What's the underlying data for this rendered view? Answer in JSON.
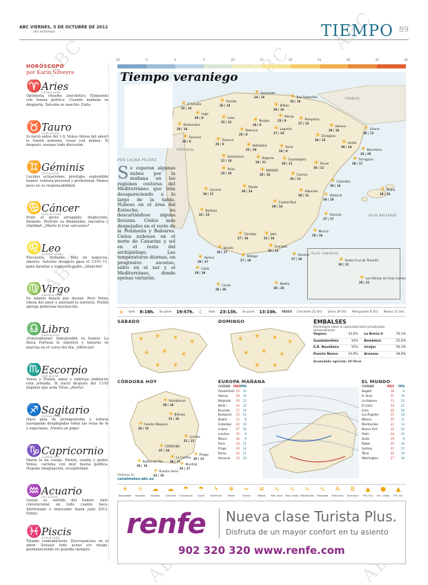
{
  "masthead": {
    "date": "ABC VIERNES, 5 DE OCTUBRE DE 2012",
    "url": "abc.es/tiempo",
    "section": "TIEMPO",
    "page": "89"
  },
  "watermark": "ABC",
  "horoscope": {
    "heading": "HORÓSCOPO",
    "author": "por Karin Silveyra",
    "signs": [
      {
        "glyph": "♈",
        "name": "Aries",
        "dates": "(21-III al 20-IV)",
        "text": "Optimista, risueño, anecdótico, Eloquente con buena política. Cuando mañana se despierte, Saturno se marchó. Éxito."
      },
      {
        "glyph": "♉",
        "name": "Tauro",
        "dates": "(21-IV al 20-V)",
        "text": "Si nació antes del 1-V, Venus (diosa del amor) le traerá armonía, rosas con mimos. Si después, sosiaye todo discusión."
      },
      {
        "glyph": "♊",
        "name": "Géminis",
        "dates": "(21-V al 21-VI)",
        "text": "Lucidas actuaciones, prestigio, esplendido humor, ventura personal y profesional. Menos peso en su responsabilidad."
      },
      {
        "glyph": "♋",
        "name": "Cáncer",
        "dates": "(22-VI al 22-VII)",
        "text": "Evite el gesto arrogante, displicente, distante. Disfrute su dinamismo, iniciativa y vitalidad. ¿Marte le trae sarcasmo?"
      },
      {
        "glyph": "♌",
        "name": "Leo",
        "dates": "(23-VII al 23-VIII)",
        "text": "Elocuente, brillante, feliz en negocios, amores. Saturno despacio pasa el 13-VI 11, gana batallas y explosivo genio. ¡Atención!"
      },
      {
        "glyph": "♍",
        "name": "Virgo",
        "dates": "(24-VIII al 23-IX)",
        "text": "Su talante dejará que desear. Pero Venus (diosa del amor y amistad) le sonreirá. Plutón agrega poderosa fascinación."
      },
      {
        "glyph": "♎",
        "name": "Libra",
        "dates": "(24-IX al 23-X)",
        "text": "¡Enhorabuena! Inmejorable su humor. La diosa Fortuna le sonreirá y Saturno se marcha en el curso del día. ¡Albricias!"
      },
      {
        "glyph": "♏",
        "name": "Escorpio",
        "dates": "(24-X al 22-XI)",
        "text": "Venus y Plutón, amor y embrujo emblecen esta jornada. Si nació después del 13-XI impulso que arda Tíroa. ¡Alerta!"
      },
      {
        "glyph": "♐",
        "name": "Sagitario",
        "dates": "(23-XI al 21-XII)",
        "text": "Hace gala de protagonismo y euforia navegando desplegadas todas las velas de fe y esperanza. ¡Viento en popa!"
      },
      {
        "glyph": "♑",
        "name": "Capricornio",
        "dates": "(22-XII al 20-I)",
        "text": "Marte le da coraje. Plutón, osadía y poder. Venus, carisma con muy buena política. Nepuno imaginación, receptividad."
      },
      {
        "glyph": "♒",
        "name": "Acuario",
        "dates": "(21-I al 19-II)",
        "text": "Genial su sentido del humor. Anti-convencional en todo cuanto hace. Afortunado e innovador hasta julio 2013. Éxitos."
      },
      {
        "glyph": "♓",
        "name": "Piscis",
        "dates": "(20-II al 20-III)",
        "text": "Talante contradictorio. Discrepancias en el amor. Sosiaye todo acoso y/o riesgo, permaneciendo en guardia siempre."
      }
    ]
  },
  "temp_scale": {
    "ticks": [
      "-10",
      "-5",
      "0",
      "5",
      "10",
      "15",
      "20",
      "25",
      "30",
      "35",
      "40"
    ],
    "colors": [
      "#7fa6c9",
      "#9dbbd6",
      "#bcd3e3",
      "#d9e6d5",
      "#f1ecc0",
      "#f6e296",
      "#f4cc6a",
      "#f0ad4e",
      "#e98a3a",
      "#e0602f"
    ]
  },
  "main_map": {
    "title": "Tiempo veraniego",
    "byline": "POR LAURA PELÁEZ",
    "article_dropcap": "S",
    "article": "e esperan algunas nubes por la mañana en las regiones costeras del Mediterráneo que irán desapareciendo a lo largo de la tarde. Nuboso en el área del Estrecho, no descartándose alguna llovizna. Cielos más despejados en el resto de la Península y Baleares. Cielos nubosos en el norte de Canarias y sol en el resto del archipiélago. Las temperaturas diurnas, en progresivo ascenso, salvo en el sur y el Mediterráneo, donde apenas variarán.",
    "labels": {
      "francia": "FRANCIA",
      "portugal": "PORTUGAL",
      "baleares": "ISLAS BALEARES",
      "canarias": "ISLAS CANARIAS"
    },
    "cities": [
      {
        "name": "A Coruña",
        "temps": "23 | 14"
      },
      {
        "name": "Oviedo",
        "temps": "26 | 14"
      },
      {
        "name": "Santander",
        "temps": "24 | 16"
      },
      {
        "name": "Bilbao",
        "temps": "28 | 16"
      },
      {
        "name": "San Sebastián",
        "temps": "24 | 16"
      },
      {
        "name": "Lugo",
        "temps": "28 | 9"
      },
      {
        "name": "Pontevedra",
        "temps": "28 | 14"
      },
      {
        "name": "León",
        "temps": "23 | 12"
      },
      {
        "name": "Burgos",
        "temps": "24 | 8"
      },
      {
        "name": "Vitoria",
        "temps": "23 | 9"
      },
      {
        "name": "Pamplona",
        "temps": "27 | 13"
      },
      {
        "name": "Huesca",
        "temps": "28 | 16"
      },
      {
        "name": "Girona",
        "temps": "28 | 13"
      },
      {
        "name": "Ourense",
        "temps": "29 | 8"
      },
      {
        "name": "Palencia",
        "temps": "25 | 8"
      },
      {
        "name": "Logroño",
        "temps": "27 | 14"
      },
      {
        "name": "Zaragoza",
        "temps": "30 | 15"
      },
      {
        "name": "Lleida",
        "temps": "30 | 14"
      },
      {
        "name": "Barcelona",
        "temps": "26 | 20"
      },
      {
        "name": "Zamora",
        "temps": "25 | 9"
      },
      {
        "name": "Valladolid",
        "temps": "25 | 10"
      },
      {
        "name": "Soria",
        "temps": "24 | 9"
      },
      {
        "name": "Tarragona",
        "temps": "28 | 17"
      },
      {
        "name": "Salamanca",
        "temps": "27 | 10"
      },
      {
        "name": "Segovia",
        "temps": "24 | 11"
      },
      {
        "name": "Guadalajara",
        "temps": "28 | 11"
      },
      {
        "name": "Teruel",
        "temps": "26 | 11"
      },
      {
        "name": "Ávila",
        "temps": "23 | 10"
      },
      {
        "name": "MADRID",
        "temps": "28 | 16"
      },
      {
        "name": "Cuenca",
        "temps": "26 | 11"
      },
      {
        "name": "Castellón",
        "temps": "28 | 16"
      },
      {
        "name": "Palma",
        "temps": "28 | 16"
      },
      {
        "name": "Cáceres",
        "temps": "30 | 17"
      },
      {
        "name": "Toledo",
        "temps": "30 | 14"
      },
      {
        "name": "Valencia",
        "temps": "30 | 18"
      },
      {
        "name": "Albacete",
        "temps": "30 | 11"
      },
      {
        "name": "Badajoz",
        "temps": "32 | 15"
      },
      {
        "name": "Ciudad Real",
        "temps": "30 | 14"
      },
      {
        "name": "Alicante",
        "temps": "27 | 17"
      },
      {
        "name": "Córdoba",
        "temps": "37 | 16"
      },
      {
        "name": "Jaén",
        "temps": "31 | 16"
      },
      {
        "name": "Murcia",
        "temps": "30 | 16"
      },
      {
        "name": "Sevilla",
        "temps": "34 | 17"
      },
      {
        "name": "Granada",
        "temps": "30 | 12"
      },
      {
        "name": "Huelva",
        "temps": "29 | 17"
      },
      {
        "name": "Almería",
        "temps": "27 | 18"
      },
      {
        "name": "Málaga",
        "temps": "27 | 18"
      },
      {
        "name": "Cádiz",
        "temps": "29 | 19"
      },
      {
        "name": "Ceuta",
        "temps": "28 | 18"
      },
      {
        "name": "Melilla",
        "temps": "28 | 19"
      },
      {
        "name": "Santa Cruz de Tenerife",
        "temps": "28 | 21"
      },
      {
        "name": "Las Palmas de Gran Canaria",
        "temps": "28 | 21"
      }
    ]
  },
  "sun_moon": {
    "sun_rise_label": "Sale",
    "sun_rise": "8:18h.",
    "sun_set_label": "Se pone",
    "sun_set": "19:57h.",
    "moon_rise_label": "Sale",
    "moon_rise": "23:13h.",
    "moon_set_label": "Se pone",
    "moon_set": "13:10h.",
    "phases_label": "FASES",
    "phases": [
      "Creciente 22 Oct.",
      "Llena 29 Oct.",
      "Menguante 8 Oct.",
      "Nueva 15 Oct."
    ]
  },
  "sabado": {
    "title": "SÁBADO"
  },
  "domingo": {
    "title": "DOMINGO"
  },
  "embalses": {
    "title": "EMBALSES",
    "subtitle": "Porcentajes sobre la capacidad total actualizados semanalmente",
    "rows": [
      {
        "name": "Vegana",
        "val": "43,6%",
        "name2": "La Breña II",
        "val2": "76,1%"
      },
      {
        "name": "Guadalmellato",
        "val": "34%",
        "name2": "Bembézar",
        "val2": "52,6%"
      },
      {
        "name": "S.R. Navallana",
        "val": "35%",
        "name2": "Iznájar",
        "val2": "56,3%"
      },
      {
        "name": "Puente Nuevo",
        "val": "54,9%",
        "name2": "Arenoso",
        "val2": "38,9%"
      }
    ],
    "total": "Acumulado agrícola: 10 litros"
  },
  "cordoba": {
    "title": "CÓRDOBA HOY",
    "places": [
      {
        "name": "Pozoblanco",
        "temps": "36 | 16"
      },
      {
        "name": "Bélmez",
        "temps": "31 | 16"
      },
      {
        "name": "Fuente Obejuna",
        "temps": "28 | 15"
      },
      {
        "name": "CÓRDOBA",
        "temps": "37 | 16"
      },
      {
        "name": "La Carlota",
        "temps": "36 | 17"
      },
      {
        "name": "Palma del Río",
        "temps": "36 | 16"
      },
      {
        "name": "Puente Genil",
        "temps": "32 | 16"
      },
      {
        "name": "Montilla",
        "temps": "33 | 17"
      },
      {
        "name": "Priego",
        "temps": "30 | 13"
      },
      {
        "name": "Lucena",
        "temps": "31 | 15"
      }
    ],
    "footer": "Visítenos en:",
    "site": "canalmeteo.abc.es"
  },
  "europa": {
    "title": "EUROPA MAÑANA",
    "col_city": "CIUDAD",
    "col_max": "MÁX",
    "col_min": "MÍN",
    "rows": [
      [
        "Ámsterdam",
        "16",
        "10"
      ],
      [
        "Atenas",
        "29",
        "19"
      ],
      [
        "Belgrado",
        "26",
        "12"
      ],
      [
        "Berlín",
        "14",
        "12"
      ],
      [
        "Bruselas",
        "17",
        "10"
      ],
      [
        "Budapest",
        "23",
        "12"
      ],
      [
        "Dublín",
        "13",
        "8"
      ],
      [
        "Estambul",
        "24",
        "16"
      ],
      [
        "Lisboa",
        "27",
        "16"
      ],
      [
        "Londres",
        "15",
        "8"
      ],
      [
        "Moscú",
        "16",
        "9"
      ],
      [
        "París",
        "19",
        "11"
      ],
      [
        "Praga",
        "18",
        "12"
      ],
      [
        "Roma",
        "24",
        "17"
      ],
      [
        "Varsovia",
        "16",
        "10"
      ]
    ]
  },
  "mundo": {
    "title": "EL MUNDO",
    "col_city": "CIUDAD",
    "col_max": "MÁX",
    "col_min": "MÍN",
    "rows": [
      [
        "Bogotá",
        "18",
        "8"
      ],
      [
        "B. Aires",
        "21",
        "16"
      ],
      [
        "La Habana",
        "31",
        "23"
      ],
      [
        "El Cairo",
        "33",
        "21"
      ],
      [
        "Lima",
        "20",
        "16"
      ],
      [
        "Los Ángeles",
        "21",
        "18"
      ],
      [
        "México",
        "20",
        "11"
      ],
      [
        "Montevideo",
        "22",
        "13"
      ],
      [
        "Nueva York",
        "26",
        "20"
      ],
      [
        "Pekín",
        "24",
        "12"
      ],
      [
        "Quito",
        "19",
        "8"
      ],
      [
        "Rabat",
        "25",
        "16"
      ],
      [
        "Sydney",
        "22",
        "15"
      ],
      [
        "Tokio",
        "26",
        "19"
      ],
      [
        "Washington",
        "27",
        "18"
      ]
    ]
  },
  "legend": [
    {
      "icon": "☀",
      "label": "Despejado"
    },
    {
      "icon": "☼",
      "label": "Variable"
    },
    {
      "icon": "☁",
      "label": "Nuboso"
    },
    {
      "icon": "☁",
      "label": "Cubierto"
    },
    {
      "icon": "☂",
      "label": "Chubascos"
    },
    {
      "icon": "☂",
      "label": "Lluvia"
    },
    {
      "icon": "ϟ",
      "label": "Tormenta"
    },
    {
      "icon": "❄",
      "label": "Nieve"
    },
    {
      "icon": "≈",
      "label": "Viento"
    },
    {
      "icon": "≋",
      "label": "Niebla"
    },
    {
      "icon": "∿",
      "label": "Mar llana"
    },
    {
      "icon": "∿",
      "label": "Mar rizada"
    },
    {
      "icon": "∿",
      "label": "Marejadilla"
    },
    {
      "icon": "∿",
      "label": "Marejada"
    },
    {
      "icon": "A",
      "label": "Anticiclón"
    },
    {
      "icon": "B",
      "label": "Borrasca"
    },
    {
      "icon": "▲",
      "label": "Fte. frío"
    },
    {
      "icon": "●",
      "label": "Fte. cálido"
    },
    {
      "icon": "▲",
      "label": "Fte. ocl."
    }
  ],
  "ad": {
    "logo": "renfe",
    "headline": "Nueva clase Turista Plus.",
    "sub": "Disfruta de un mayor confort en tu asiento",
    "phone": "902 320 320 www.renfe.com"
  },
  "colors": {
    "accent": "#1f6f8b",
    "horo": "#c9342b",
    "renfe": "#8c2a86",
    "sun": "#f0a000"
  }
}
